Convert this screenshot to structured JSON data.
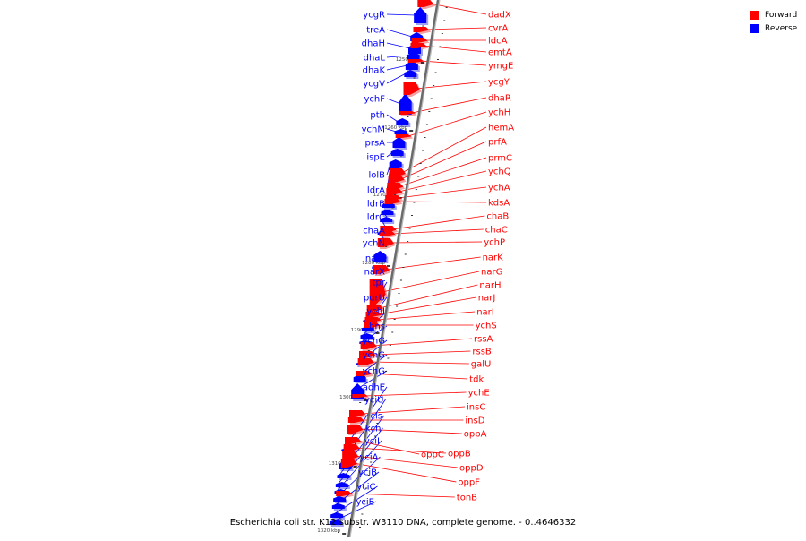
{
  "legend": {
    "forward": {
      "label": "Forward",
      "color": "#ff0000"
    },
    "reverse": {
      "label": "Reverse",
      "color": "#0000ff"
    }
  },
  "caption": "Escherichia coli str. K12 substr. W3110 DNA, complete genome. - 0..4646332",
  "axis": {
    "start_kbp": 1240.5,
    "end_kbp": 1320.3,
    "ticks": [
      "1250 kbp",
      "1260 kbp",
      "1270 kbp",
      "1280 kbp",
      "1290 kbp",
      "1300 kbp",
      "1310 kbp",
      "1320 kbp"
    ]
  },
  "genes": {
    "reverse": [
      "ycgR",
      "treA",
      "dhaH",
      "dhaL",
      "dhaK",
      "ycgV",
      "ychF",
      "pth",
      "ychM",
      "prsA",
      "ispE",
      "lolB",
      "ldrA",
      "ldrB",
      "ldrC",
      "chaA",
      "ychN",
      "narL",
      "narX",
      "tpr",
      "purU",
      "ychJ",
      "hns",
      "ychG",
      "ychG",
      "ychG",
      "adhE",
      "yciU",
      "cls",
      "kch",
      "yciI",
      "yciA",
      "yciB",
      "yciC",
      "yciE"
    ],
    "forward": [
      "dadX",
      "cvrA",
      "ldcA",
      "emtA",
      "ymgE",
      "ycgY",
      "dhaR",
      "ychH",
      "hemA",
      "prfA",
      "prmC",
      "ychQ",
      "ychA",
      "kdsA",
      "chaB",
      "chaC",
      "ychP",
      "narK",
      "narG",
      "narH",
      "narJ",
      "narI",
      "ychS",
      "rssA",
      "rssB",
      "galU",
      "tdk",
      "ychE",
      "insC",
      "insD",
      "oppA",
      "oppC",
      "oppB",
      "oppD",
      "oppF",
      "tonB"
    ]
  }
}
